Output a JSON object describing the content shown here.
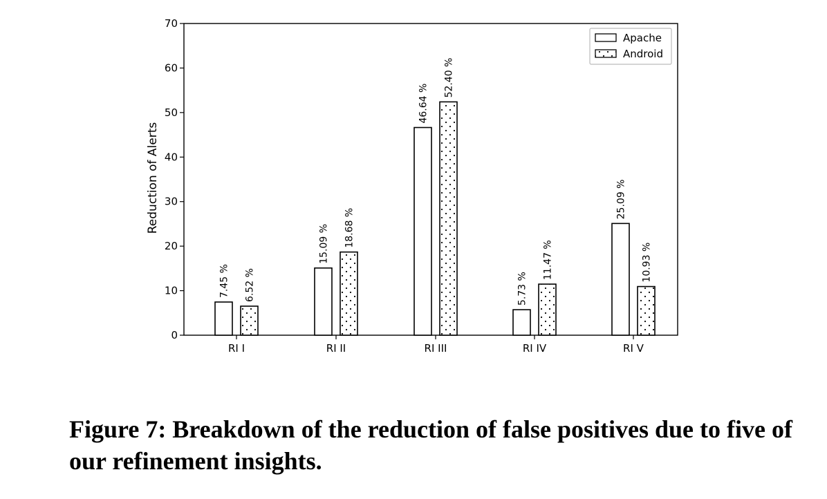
{
  "chart_data": {
    "type": "bar",
    "categories": [
      "RI I",
      "RI II",
      "RI III",
      "RI IV",
      "RI V"
    ],
    "series": [
      {
        "name": "Apache",
        "values": [
          7.45,
          15.09,
          46.64,
          5.73,
          25.09
        ],
        "labels": [
          "7.45 %",
          "15.09 %",
          "46.64 %",
          "5.73 %",
          "25.09 %"
        ],
        "pattern": "none"
      },
      {
        "name": "Android",
        "values": [
          6.52,
          18.68,
          52.4,
          11.47,
          10.93
        ],
        "labels": [
          "6.52 %",
          "18.68 %",
          "52.40 %",
          "11.47 %",
          "10.93 %"
        ],
        "pattern": "dots"
      }
    ],
    "title": "",
    "xlabel": "",
    "ylabel": "Reduction of Alerts",
    "ylim": [
      0,
      70
    ],
    "yticks": [
      0,
      10,
      20,
      30,
      40,
      50,
      60,
      70
    ],
    "grid": false,
    "legend": "top-right",
    "bar_fill": "#ffffff",
    "bar_stroke": "#000000"
  },
  "caption": "Figure 7: Breakdown of the reduction of false positives due to five of our refinement insights."
}
